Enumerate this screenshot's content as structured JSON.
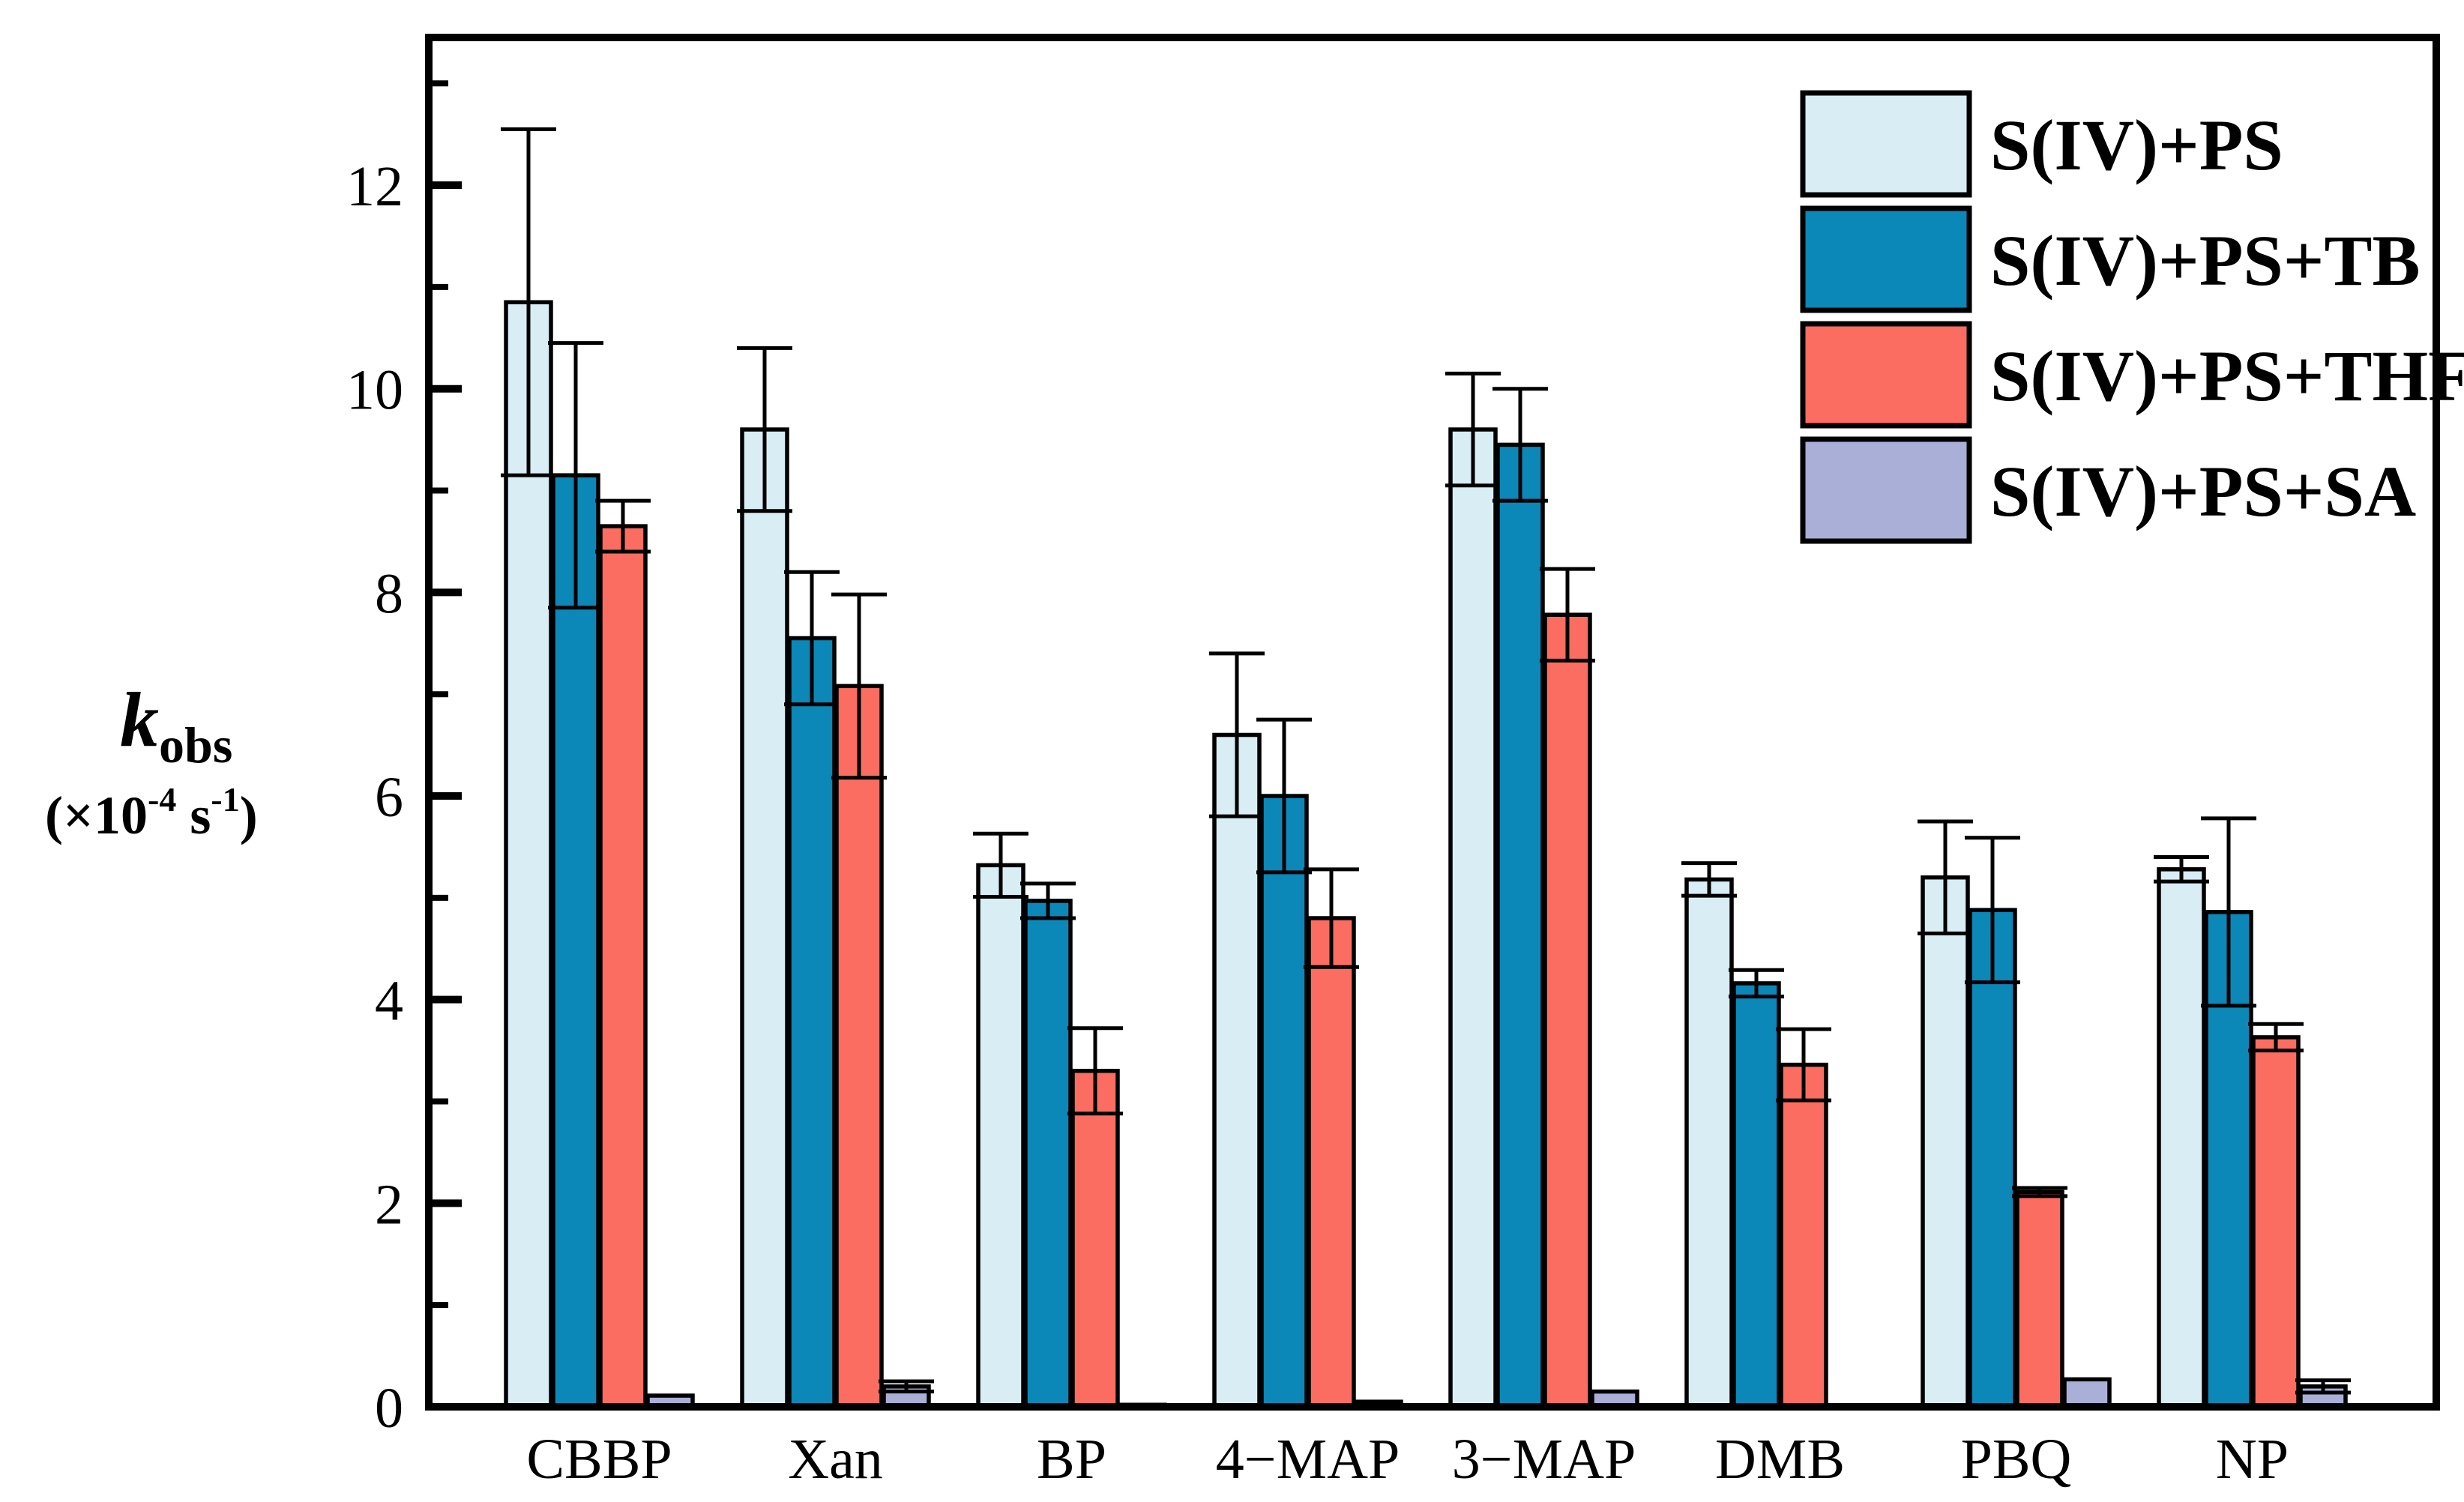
{
  "figure": {
    "background": "#ffffff",
    "axis_color": "#000000"
  },
  "chart_data": {
    "type": "bar",
    "title": "",
    "xlabel": "",
    "ylabel_line1": [
      {
        "text": "k",
        "style": "italic"
      },
      {
        "text": "obs",
        "style": "sub"
      }
    ],
    "ylabel_line2": [
      {
        "text": "(×10"
      },
      {
        "text": "-4",
        "style": "sup"
      },
      {
        "text": "  s"
      },
      {
        "text": "-1",
        "style": "sup"
      },
      {
        "text": ")"
      }
    ],
    "categories": [
      "CBBP",
      "Xan",
      "BP",
      "4−MAP",
      "3−MAP",
      "DMB",
      "PBQ",
      "NP"
    ],
    "ytick_labels": [
      "0",
      "2",
      "4",
      "6",
      "8",
      "10",
      "12"
    ],
    "yticks_major": [
      0,
      2,
      4,
      6,
      8,
      10,
      12
    ],
    "yticks_minor": [
      1,
      3,
      5,
      7,
      9,
      11,
      13
    ],
    "ylim": [
      0,
      13.45
    ],
    "grid": false,
    "legend_position": "top-right",
    "bar_outline_color": "#000000",
    "error_bar_color": "#000000",
    "series": [
      {
        "name": "S(IV)+PS",
        "color": "#d9edf5",
        "values": [
          10.85,
          9.6,
          5.32,
          6.6,
          9.6,
          5.18,
          5.2,
          5.28
        ],
        "errors": [
          1.7,
          0.8,
          0.31,
          0.8,
          0.55,
          0.16,
          0.55,
          0.12
        ]
      },
      {
        "name": "S(IV)+PS+TB",
        "color": "#0b87b8",
        "values": [
          9.15,
          7.55,
          4.97,
          6.0,
          9.45,
          4.16,
          4.88,
          4.86
        ],
        "errors": [
          1.3,
          0.65,
          0.17,
          0.75,
          0.55,
          0.13,
          0.71,
          0.92
        ]
      },
      {
        "name": "S(IV)+PS+THF",
        "color": "#fc6d61",
        "values": [
          8.65,
          7.08,
          3.3,
          4.8,
          7.78,
          3.36,
          2.11,
          3.63
        ],
        "errors": [
          0.25,
          0.9,
          0.42,
          0.48,
          0.45,
          0.35,
          0.04,
          0.13
        ]
      },
      {
        "name": "S(IV)+PS+SA",
        "color": "#a9afd7",
        "values": [
          0.11,
          0.2,
          0.02,
          0.05,
          0.15,
          0,
          0.27,
          0.2
        ],
        "errors": [
          0,
          0.05,
          0,
          0,
          0,
          0,
          0,
          0.06
        ]
      }
    ]
  }
}
